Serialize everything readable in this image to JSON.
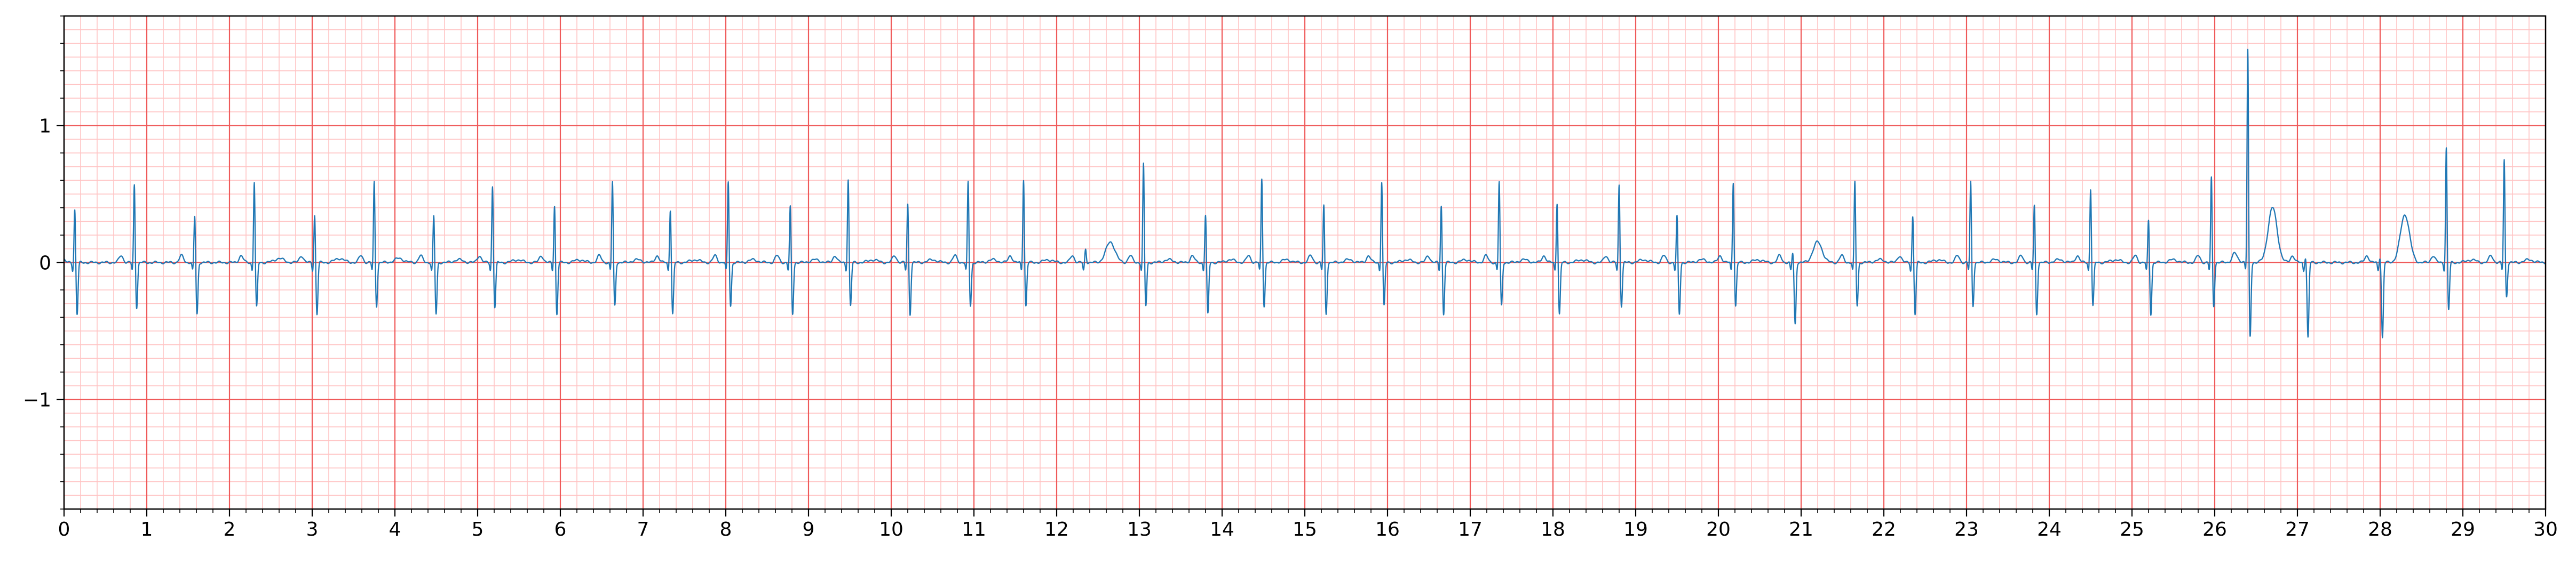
{
  "chart_data": {
    "type": "line",
    "title": "",
    "xlabel": "",
    "ylabel": "",
    "xlim": [
      0,
      30
    ],
    "ylim": [
      -1.8,
      1.8
    ],
    "grid": true,
    "legend": "none",
    "x_ticks": [
      "0",
      "1",
      "2",
      "3",
      "4",
      "5",
      "6",
      "7",
      "8",
      "9",
      "10",
      "11",
      "12",
      "13",
      "14",
      "15",
      "16",
      "17",
      "18",
      "19",
      "20",
      "21",
      "22",
      "23",
      "24",
      "25",
      "26",
      "27",
      "28",
      "29",
      "30"
    ],
    "y_ticks": [
      {
        "value": 1,
        "label": "1"
      },
      {
        "value": 0,
        "label": "0"
      },
      {
        "value": -1,
        "label": "−1"
      }
    ],
    "series": [
      {
        "beats": [
          {
            "t": 0.13,
            "r": 0.4,
            "s": -0.38,
            "tw": 0.0
          },
          {
            "t": 0.85,
            "r": 0.58,
            "s": -0.33,
            "tw": 0.0
          },
          {
            "t": 1.58,
            "r": 0.35,
            "s": -0.38,
            "tw": 0.0
          },
          {
            "t": 2.3,
            "r": 0.6,
            "s": -0.33,
            "tw": 0.03
          },
          {
            "t": 3.03,
            "r": 0.36,
            "s": -0.38,
            "tw": 0.03
          },
          {
            "t": 3.75,
            "r": 0.6,
            "s": -0.32,
            "tw": 0.03
          },
          {
            "t": 4.47,
            "r": 0.35,
            "s": -0.38,
            "tw": 0.02
          },
          {
            "t": 5.18,
            "r": 0.57,
            "s": -0.33,
            "tw": 0.02
          },
          {
            "t": 5.93,
            "r": 0.43,
            "s": -0.38,
            "tw": 0.02
          },
          {
            "t": 6.63,
            "r": 0.6,
            "s": -0.32,
            "tw": 0.02
          },
          {
            "t": 7.33,
            "r": 0.4,
            "s": -0.38,
            "tw": 0.02
          },
          {
            "t": 8.03,
            "r": 0.6,
            "s": -0.32,
            "tw": 0.02
          },
          {
            "t": 8.78,
            "r": 0.42,
            "s": -0.38,
            "tw": 0.02
          },
          {
            "t": 9.48,
            "r": 0.62,
            "s": -0.32,
            "tw": 0.02
          },
          {
            "t": 10.2,
            "r": 0.44,
            "s": -0.38,
            "tw": 0.02
          },
          {
            "t": 10.93,
            "r": 0.6,
            "s": -0.32,
            "tw": 0.02
          },
          {
            "t": 11.6,
            "r": 0.62,
            "s": -0.32,
            "tw": 0.02
          },
          {
            "t": 12.35,
            "r": 0.1,
            "s": 0.0,
            "tw": 0.15
          },
          {
            "t": 13.05,
            "r": 0.73,
            "s": -0.32,
            "tw": 0.02
          },
          {
            "t": 13.8,
            "r": 0.36,
            "s": -0.38,
            "tw": 0.02
          },
          {
            "t": 14.48,
            "r": 0.62,
            "s": -0.32,
            "tw": 0.02
          },
          {
            "t": 15.23,
            "r": 0.43,
            "s": -0.38,
            "tw": 0.02
          },
          {
            "t": 15.93,
            "r": 0.6,
            "s": -0.32,
            "tw": 0.02
          },
          {
            "t": 16.65,
            "r": 0.43,
            "s": -0.38,
            "tw": 0.02
          },
          {
            "t": 17.35,
            "r": 0.6,
            "s": -0.32,
            "tw": 0.02
          },
          {
            "t": 18.05,
            "r": 0.45,
            "s": -0.38,
            "tw": 0.02
          },
          {
            "t": 18.8,
            "r": 0.58,
            "s": -0.32,
            "tw": 0.02
          },
          {
            "t": 19.5,
            "r": 0.35,
            "s": -0.38,
            "tw": 0.02
          },
          {
            "t": 20.18,
            "r": 0.6,
            "s": -0.32,
            "tw": 0.02
          },
          {
            "t": 20.9,
            "r": 0.08,
            "s": -0.45,
            "tw": 0.15
          },
          {
            "t": 21.65,
            "r": 0.6,
            "s": -0.32,
            "tw": 0.02
          },
          {
            "t": 22.35,
            "r": 0.35,
            "s": -0.38,
            "tw": 0.02
          },
          {
            "t": 23.05,
            "r": 0.6,
            "s": -0.32,
            "tw": 0.02
          },
          {
            "t": 23.82,
            "r": 0.43,
            "s": -0.38,
            "tw": 0.02
          },
          {
            "t": 24.5,
            "r": 0.55,
            "s": -0.32,
            "tw": 0.02
          },
          {
            "t": 25.2,
            "r": 0.32,
            "s": -0.38,
            "tw": 0.02
          },
          {
            "t": 25.96,
            "r": 0.63,
            "s": -0.32,
            "tw": 0.02
          },
          {
            "t": 26.4,
            "r": 1.57,
            "s": -0.55,
            "tw": 0.4
          },
          {
            "t": 27.1,
            "r": 0.05,
            "s": -0.55,
            "tw": 0.0
          },
          {
            "t": 28.0,
            "r": 0.05,
            "s": -0.55,
            "tw": 0.35
          },
          {
            "t": 28.8,
            "r": 0.85,
            "s": -0.35,
            "tw": 0.02
          },
          {
            "t": 29.5,
            "r": 0.76,
            "s": -0.25,
            "tw": 0.02
          }
        ]
      }
    ]
  }
}
